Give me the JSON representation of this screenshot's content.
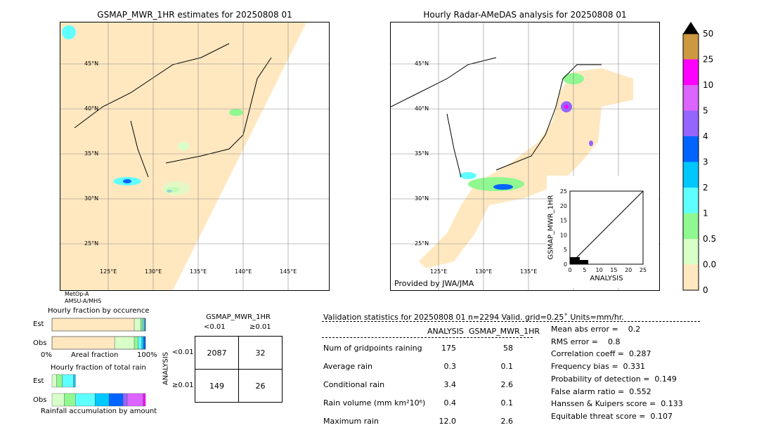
{
  "left_map": {
    "title": "GSMAP_MWR_1HR estimates for 20250808 01",
    "sensor": [
      "MetOp-A",
      "AMSU-A/MHS"
    ],
    "lat_labels": [
      "45°N",
      "40°N",
      "35°N",
      "30°N",
      "25°N"
    ],
    "lon_labels": [
      "125°E",
      "130°E",
      "135°E",
      "140°E",
      "145°E"
    ]
  },
  "right_map": {
    "title": "Hourly Radar-AMeDAS analysis for 20250808 01",
    "credit": "Provided by JWA/JMA",
    "lat_labels": [
      "45°N",
      "40°N",
      "35°N",
      "30°N",
      "25°N"
    ],
    "lon_labels": [
      "125°E",
      "130°E",
      "135°E"
    ]
  },
  "scatter_inset": {
    "xlabel": "ANALYSIS",
    "ylabel": "GSMAP_MWR_1HR",
    "ticks": [
      "0",
      "5",
      "10",
      "15",
      "20",
      "25"
    ],
    "range": [
      0,
      25
    ]
  },
  "colorbar": {
    "labels": [
      "0",
      "0.01",
      "0.5",
      "1",
      "2",
      "3",
      "4",
      "5",
      "10",
      "25",
      "50"
    ],
    "colors": [
      "#ffe8c0",
      "#d8ffc8",
      "#90f890",
      "#60ffff",
      "#00c8ff",
      "#0064ff",
      "#9664ff",
      "#dc64ff",
      "#ff00ff",
      "#cc9940"
    ],
    "extend": "#000000"
  },
  "chart_data": [
    {
      "type": "bar",
      "title": "Hourly fraction by occurence",
      "categories": [
        "Est",
        "Obs"
      ],
      "xlabel": "Areal fraction",
      "xticks": [
        "0%",
        "100%"
      ],
      "series": [
        {
          "values": [
            88,
            67
          ]
        },
        {
          "values": [
            7,
            21
          ]
        },
        {
          "values": [
            2,
            4
          ]
        },
        {
          "values": [
            1.5,
            4
          ]
        },
        {
          "values": [
            1,
            2
          ]
        },
        {
          "values": [
            0.5,
            2
          ]
        }
      ]
    },
    {
      "type": "bar",
      "title": "Hourly fraction of total rain",
      "categories": [
        "Est",
        "Obs"
      ],
      "xlabel": "Rainfall accumulation by amount",
      "series": [
        {
          "values": [
            5,
            13
          ]
        },
        {
          "values": [
            6,
            12
          ]
        },
        {
          "values": [
            12,
            21
          ]
        },
        {
          "values": [
            2,
            15
          ]
        },
        {
          "values": [
            0,
            15
          ]
        },
        {
          "values": [
            0,
            4.5
          ]
        },
        {
          "values": [
            0,
            17
          ]
        },
        {
          "values": [
            0,
            2.5
          ]
        }
      ]
    },
    {
      "type": "table",
      "title": "GSMAP_MWR_1HR",
      "col_headers": [
        "<0.01",
        "≥0.01"
      ],
      "row_label": "ANALYSIS",
      "row_headers": [
        "<0.01",
        "≥0.01"
      ],
      "cells": [
        [
          "2087",
          "32"
        ],
        [
          "149",
          "26"
        ]
      ]
    }
  ],
  "stats": {
    "header": "Validation statistics for 20250808 01  n=2294 Valid. grid=0.25˚ Units=mm/hr.",
    "col1": "ANALYSIS",
    "col2": "GSMAP_MWR_1HR",
    "rows": [
      {
        "label": "Num of gridpoints raining",
        "a": "175",
        "g": "58"
      },
      {
        "label": "Average rain",
        "a": "0.3",
        "g": "0.1"
      },
      {
        "label": "Conditional rain",
        "a": "3.4",
        "g": "2.6"
      },
      {
        "label": "Rain volume (mm km²10⁶)",
        "a": "0.4",
        "g": "0.1"
      },
      {
        "label": "Maximum rain",
        "a": "12.0",
        "g": "2.6"
      }
    ],
    "scores": [
      "Mean abs error =    0.2",
      "RMS error =    0.8",
      "Correlation coeff =  0.287",
      "Frequency bias =  0.331",
      "Probability of detection =  0.149",
      "False alarm ratio =  0.552",
      "Hanssen & Kuipers score =  0.133",
      "Equitable threat score =  0.107"
    ]
  }
}
